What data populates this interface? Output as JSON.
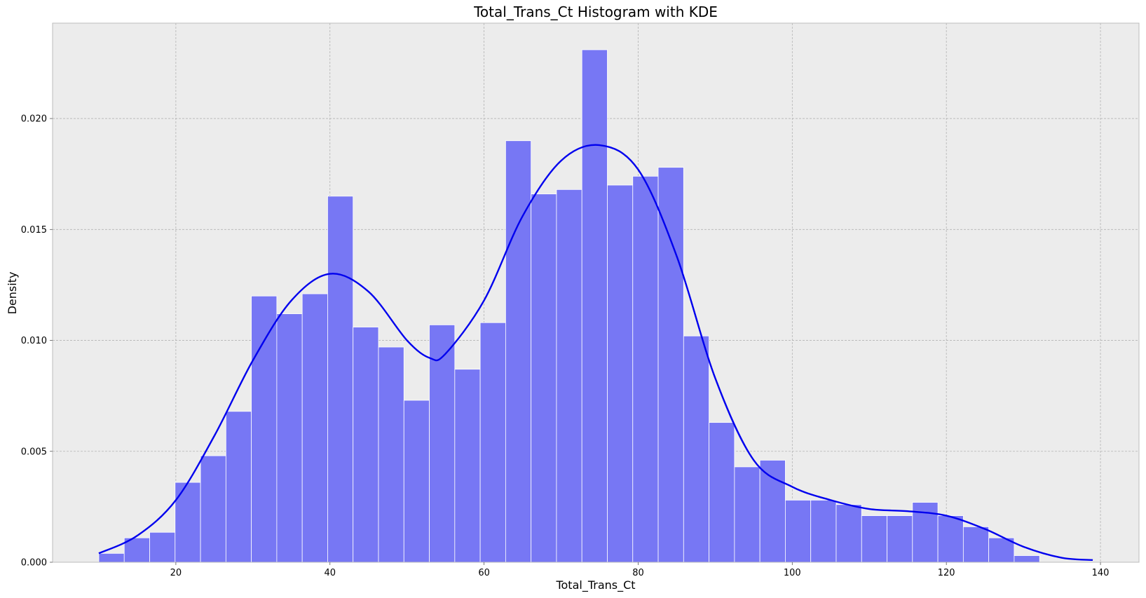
{
  "colors": {
    "bar": "#7777f4",
    "kde": "#0000ee",
    "background": "#ececec"
  },
  "chart_data": {
    "type": "bar",
    "title": "Total_Trans_Ct Histogram with KDE",
    "xlabel": "Total_Trans_Ct",
    "ylabel": "Density",
    "xlim": [
      4,
      145
    ],
    "ylim": [
      0,
      0.0243
    ],
    "xticks": [
      20,
      40,
      60,
      80,
      100,
      120,
      140
    ],
    "yticks": [
      0.0,
      0.005,
      0.01,
      0.015,
      0.02
    ],
    "ytick_labels": [
      "0.000",
      "0.005",
      "0.010",
      "0.015",
      "0.020"
    ],
    "grid": true,
    "histogram": {
      "bin_start": 10,
      "bin_width": 3.3,
      "values": [
        0.0004,
        0.0011,
        0.00135,
        0.0036,
        0.0048,
        0.0068,
        0.012,
        0.0112,
        0.0121,
        0.0165,
        0.0106,
        0.0097,
        0.0073,
        0.0107,
        0.0087,
        0.0108,
        0.019,
        0.0166,
        0.0168,
        0.0231,
        0.017,
        0.0174,
        0.0178,
        0.0102,
        0.0063,
        0.0043,
        0.0046,
        0.0028,
        0.0028,
        0.0026,
        0.0021,
        0.0021,
        0.0027,
        0.0021,
        0.0016,
        0.0011,
        0.0003
      ]
    },
    "kde": {
      "x": [
        10,
        15,
        20,
        25,
        30,
        35,
        40,
        45,
        50,
        53,
        55,
        60,
        65,
        70,
        75,
        80,
        85,
        90,
        95,
        100,
        105,
        110,
        115,
        120,
        125,
        130,
        135,
        139
      ],
      "y": [
        0.0004,
        0.0012,
        0.0028,
        0.0057,
        0.0091,
        0.0118,
        0.013,
        0.0122,
        0.01,
        0.0092,
        0.0094,
        0.0118,
        0.0156,
        0.0181,
        0.0188,
        0.0177,
        0.0138,
        0.0083,
        0.0046,
        0.0034,
        0.0028,
        0.0024,
        0.0023,
        0.0021,
        0.0015,
        0.0007,
        0.0002,
        0.0001
      ]
    }
  }
}
